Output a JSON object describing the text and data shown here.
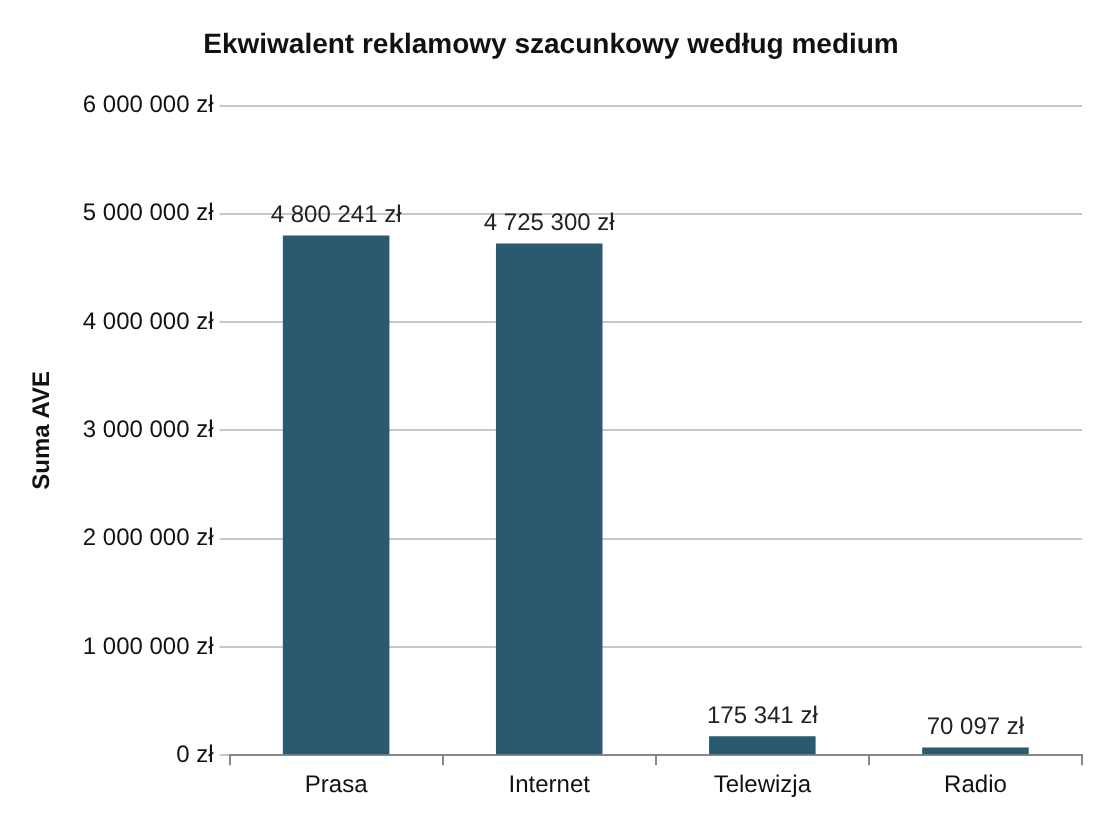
{
  "chart_data": {
    "type": "bar",
    "title": "Ekwiwalent reklamowy szacunkowy według medium",
    "ylabel": "Suma AVE",
    "categories": [
      "Prasa",
      "Internet",
      "Telewizja",
      "Radio"
    ],
    "values": [
      4800241,
      4725300,
      175341,
      70097
    ],
    "value_labels": [
      "4 800 241 zł",
      "4 725 300 zł",
      "175 341 zł",
      "70 097 zł"
    ],
    "color": "#2b5a70",
    "ylim": [
      0,
      6000000
    ],
    "yticks": [
      {
        "value": 0,
        "label": "0 zł"
      },
      {
        "value": 1000000,
        "label": "1 000 000 zł"
      },
      {
        "value": 2000000,
        "label": "2 000 000 zł"
      },
      {
        "value": 3000000,
        "label": "3 000 000 zł"
      },
      {
        "value": 4000000,
        "label": "4 000 000 zł"
      },
      {
        "value": 5000000,
        "label": "5 000 000 zł"
      },
      {
        "value": 6000000,
        "label": "6 000 000 zł"
      }
    ],
    "grid": "y"
  }
}
